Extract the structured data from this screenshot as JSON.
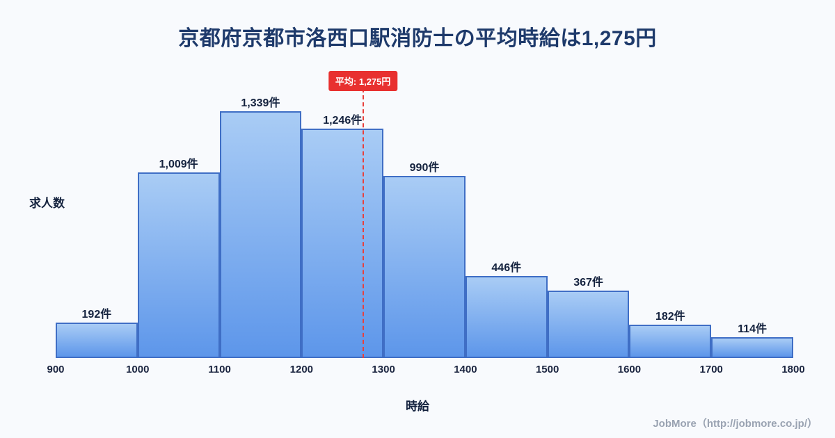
{
  "title": "京都府京都市洛西口駅消防士の平均時給は1,275円",
  "chart_data": {
    "type": "bar",
    "subtype": "histogram",
    "bin_edges": [
      900,
      1000,
      1100,
      1200,
      1300,
      1400,
      1500,
      1600,
      1700,
      1800
    ],
    "categories": [
      "900-1000",
      "1000-1100",
      "1100-1200",
      "1200-1300",
      "1300-1400",
      "1400-1500",
      "1500-1600",
      "1600-1700",
      "1700-1800"
    ],
    "values": [
      192,
      1009,
      1339,
      1246,
      990,
      446,
      367,
      182,
      114
    ],
    "value_labels": [
      "192件",
      "1,009件",
      "1,339件",
      "1,246件",
      "990件",
      "446件",
      "367件",
      "182件",
      "114件"
    ],
    "x_ticks": [
      "900",
      "1000",
      "1100",
      "1200",
      "1300",
      "1400",
      "1500",
      "1600",
      "1700",
      "1800"
    ],
    "xlabel": "時給",
    "ylabel": "求人数",
    "xlim": [
      900,
      1800
    ],
    "ylim": [
      0,
      1339
    ],
    "grid": false,
    "average_value": 1275,
    "average_label": "平均: 1,275円"
  },
  "footer": {
    "credit": "JobMore（http://jobmore.co.jp/）"
  },
  "colors": {
    "background": "#f8fafd",
    "title": "#1e3a6b",
    "bar_gradient_top": "#a9ccf5",
    "bar_gradient_bottom": "#5d96ea",
    "bar_border": "#3f6ec5",
    "average_line": "#e8403c",
    "average_badge_bg": "#e8302f",
    "average_badge_text": "#ffffff",
    "footer_text": "#9aa3b2"
  }
}
